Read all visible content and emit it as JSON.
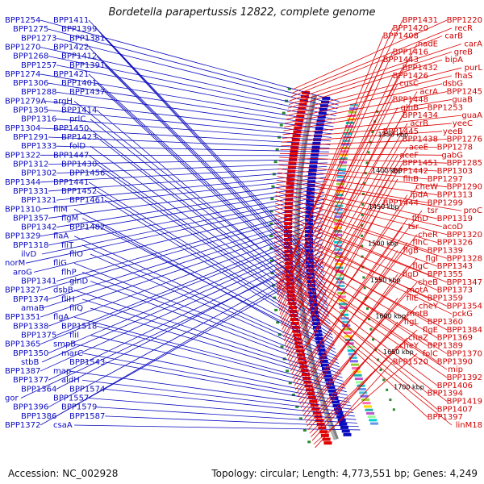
{
  "title": "Bordetella parapertussis 12822, complete genome",
  "footer": {
    "accession": "Accession: NC_002928",
    "summary": "Topology: circular; Length: 4,773,551 bp; Genes: 4,249"
  },
  "colors": {
    "forward": "#0b0bbf",
    "reverse": "#e00000",
    "backbone": "#808080",
    "gc_dots": "#2a8a2a"
  },
  "kbp_labels": [
    "1350 kbp",
    "1400 kbp",
    "1450 kbp",
    "1500 kbp",
    "1550 kbp",
    "1600 kbp",
    "1650 kbp",
    "1700 kbp"
  ],
  "left_labels": [
    "BPP1254",
    "BPP1275",
    "BPP1273",
    "BPP1270",
    "BPP1268",
    "BPP1257",
    "BPP1274",
    "BPP1306",
    "BPP1288",
    "BPP1279A",
    "BPP1305",
    "BPP1316",
    "BPP1304",
    "BPP1291",
    "BPP1333",
    "BPP1322",
    "BPP1312",
    "BPP1302",
    "BPP1344",
    "BPP1331",
    "BPP1321",
    "BPP1310",
    "BPP1357",
    "BPP1342",
    "BPP1329",
    "BPP1318",
    "ilvD",
    "norM",
    "aroG",
    "BPP1341",
    "BPP1327",
    "BPP1374",
    "amaB",
    "BPP1351",
    "BPP1338",
    "BPP1375",
    "BPP1365",
    "BPP1350",
    "stbB",
    "BPP1387",
    "BPP1377",
    "BPP1364",
    "gor",
    "BPP1396",
    "BPP1386",
    "BPP1372",
    "BPP1411",
    "BPP1399",
    "BPP1381",
    "BPP1422",
    "BPP1412",
    "BPP1391",
    "BPP1421",
    "BPP1401",
    "BPP1437",
    "argH",
    "BPP1414",
    "prlC",
    "BPP1450",
    "BPP1423",
    "folD",
    "BPP1447",
    "BPP1430",
    "BPP1456",
    "BPP1441",
    "BPP1452",
    "BPP1461",
    "fliM",
    "flgM",
    "BPP1482",
    "flaA",
    "fliT",
    "fliO",
    "fliG",
    "flhP",
    "glnD",
    "dsbB",
    "fliH",
    "fliQ",
    "flgA",
    "BPP1518",
    "fliI",
    "smpB",
    "marC",
    "BPP1543",
    "map",
    "aldH",
    "BPP1574",
    "BPP1557",
    "BPP1579",
    "BPP1587",
    "csaA"
  ],
  "right_labels": [
    "BPP1220",
    "recR",
    "carB",
    "carA",
    "greB",
    "bipA",
    "purL",
    "fhaS",
    "dsbG",
    "BPP1245",
    "guaB",
    "BPP1253",
    "guaA",
    "yeeC",
    "yeeB",
    "BPP1276",
    "BPP1278",
    "gabG",
    "BPP1285",
    "BPP1303",
    "BPP1297",
    "BPP1290",
    "BPP1313",
    "BPP1299",
    "proC",
    "BPP1319",
    "acoD",
    "BPP1320",
    "BPP1326",
    "BPP1339",
    "BPP1328",
    "BPP1343",
    "BPP1355",
    "BPP1347",
    "BPP1373",
    "BPP1359",
    "BPP1354",
    "pckG",
    "BPP1360",
    "BPP1384",
    "BPP1369",
    "BPP1389",
    "BPP1370",
    "BPP1390",
    "mip",
    "BPP1392",
    "BPP1406",
    "BPP1394",
    "BPP1419",
    "BPP1407",
    "BPP1397",
    "linM18",
    "BPP1431",
    "BPP1420",
    "BPP1408",
    "nadE",
    "BPP1416",
    "BPP1443",
    "BPP1432",
    "BPP1426",
    "cusC",
    "acrA",
    "BPP1448",
    "glnB",
    "BPP1434",
    "acrB",
    "BPP1445",
    "BPP1438",
    "aceE",
    "aceF",
    "BPP1451",
    "BPP1442",
    "flhB",
    "cheW",
    "lpdA",
    "BPP1444",
    "tsr",
    "flhD",
    "tsr",
    "cheR",
    "flhC",
    "flgB",
    "flgI",
    "flgC",
    "flgD",
    "cheB",
    "motA",
    "fliE",
    "cheY",
    "motB",
    "flgL",
    "flgE",
    "cheZ",
    "cheY",
    "folC",
    "BPP1520"
  ]
}
